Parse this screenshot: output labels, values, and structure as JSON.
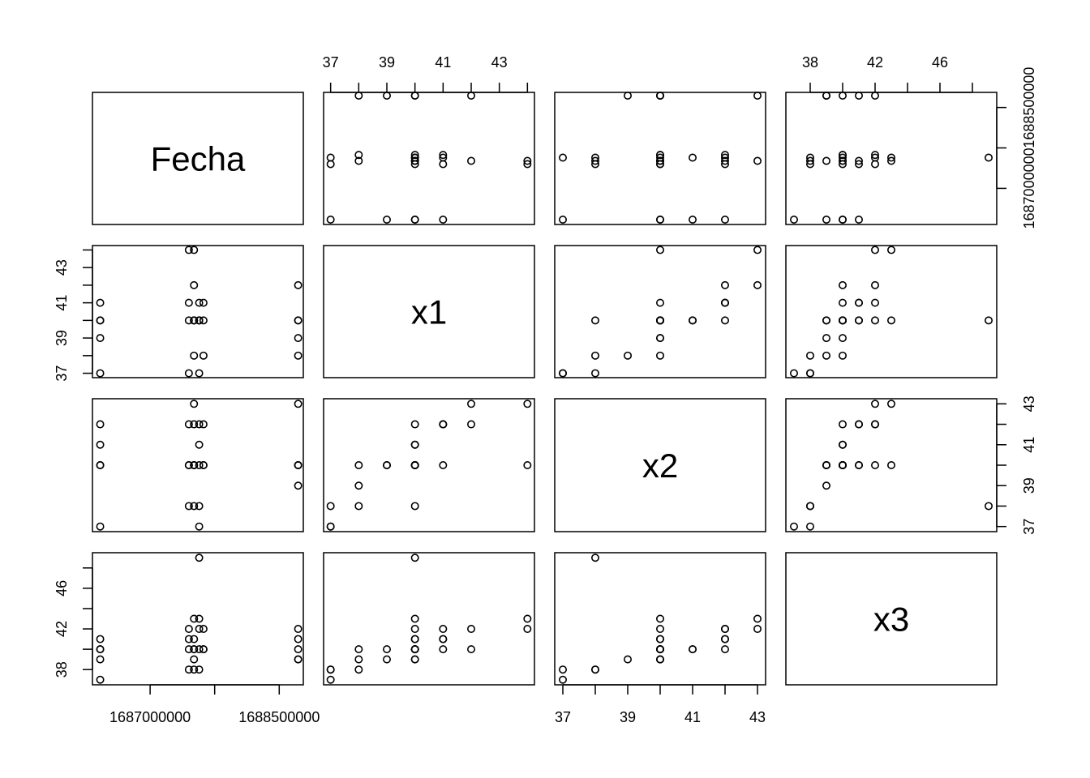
{
  "chart_data": {
    "type": "scatter",
    "variables": [
      {
        "name": "Fecha",
        "ticks": [
          1687000000,
          1688500000
        ],
        "minor_ticks": [
          1687750000
        ],
        "range": [
          1686330000,
          1688780000
        ]
      },
      {
        "name": "x1",
        "ticks": [
          37,
          39,
          41,
          43
        ],
        "minor_ticks": [
          38,
          40,
          42,
          44
        ],
        "range": [
          36.75,
          44.25
        ]
      },
      {
        "name": "x2",
        "ticks": [
          37,
          39,
          41,
          43
        ],
        "minor_ticks": [
          38,
          40,
          42
        ],
        "range": [
          36.75,
          43.25
        ]
      },
      {
        "name": "x3",
        "ticks": [
          38,
          42,
          46
        ],
        "minor_ticks": [
          40,
          44,
          48
        ],
        "range": [
          36.5,
          49.5
        ]
      }
    ],
    "observations": [
      {
        "Fecha": 1686420000,
        "x1": 37,
        "x2": 37,
        "x3": 37
      },
      {
        "Fecha": 1686420000,
        "x1": 39,
        "x2": 40,
        "x3": 39
      },
      {
        "Fecha": 1686420000,
        "x1": 40,
        "x2": 40,
        "x3": 40
      },
      {
        "Fecha": 1686420000,
        "x1": 40,
        "x2": 41,
        "x3": 40
      },
      {
        "Fecha": 1686420000,
        "x1": 41,
        "x2": 42,
        "x3": 41
      },
      {
        "Fecha": 1687450000,
        "x1": 37,
        "x2": 38,
        "x3": 38
      },
      {
        "Fecha": 1687450000,
        "x1": 40,
        "x2": 40,
        "x3": 40
      },
      {
        "Fecha": 1687450000,
        "x1": 41,
        "x2": 42,
        "x3": 41
      },
      {
        "Fecha": 1687450000,
        "x1": 44,
        "x2": 40,
        "x3": 42
      },
      {
        "Fecha": 1687510000,
        "x1": 38,
        "x2": 38,
        "x3": 38
      },
      {
        "Fecha": 1687510000,
        "x1": 40,
        "x2": 40,
        "x3": 40
      },
      {
        "Fecha": 1687510000,
        "x1": 42,
        "x2": 42,
        "x3": 40
      },
      {
        "Fecha": 1687510000,
        "x1": 44,
        "x2": 43,
        "x3": 43
      },
      {
        "Fecha": 1687510000,
        "x1": 40,
        "x2": 40,
        "x3": 41
      },
      {
        "Fecha": 1687510000,
        "x1": 40,
        "x2": 40,
        "x3": 39
      },
      {
        "Fecha": 1687570000,
        "x1": 37,
        "x2": 37,
        "x3": 38
      },
      {
        "Fecha": 1687570000,
        "x1": 40,
        "x2": 41,
        "x3": 40
      },
      {
        "Fecha": 1687570000,
        "x1": 41,
        "x2": 42,
        "x3": 42
      },
      {
        "Fecha": 1687570000,
        "x1": 40,
        "x2": 38,
        "x3": 49
      },
      {
        "Fecha": 1687570000,
        "x1": 40,
        "x2": 40,
        "x3": 43
      },
      {
        "Fecha": 1687620000,
        "x1": 38,
        "x2": 40,
        "x3": 40
      },
      {
        "Fecha": 1687620000,
        "x1": 40,
        "x2": 42,
        "x3": 42
      },
      {
        "Fecha": 1687620000,
        "x1": 41,
        "x2": 40,
        "x3": 40
      },
      {
        "Fecha": 1688720000,
        "x1": 38,
        "x2": 39,
        "x3": 39
      },
      {
        "Fecha": 1688720000,
        "x1": 39,
        "x2": 40,
        "x3": 40
      },
      {
        "Fecha": 1688720000,
        "x1": 40,
        "x2": 40,
        "x3": 41
      },
      {
        "Fecha": 1688720000,
        "x1": 42,
        "x2": 43,
        "x3": 42
      },
      {
        "Fecha": 1688720000,
        "x1": 40,
        "x2": 40,
        "x3": 39
      }
    ],
    "title": "",
    "grid": false,
    "legend": false
  }
}
